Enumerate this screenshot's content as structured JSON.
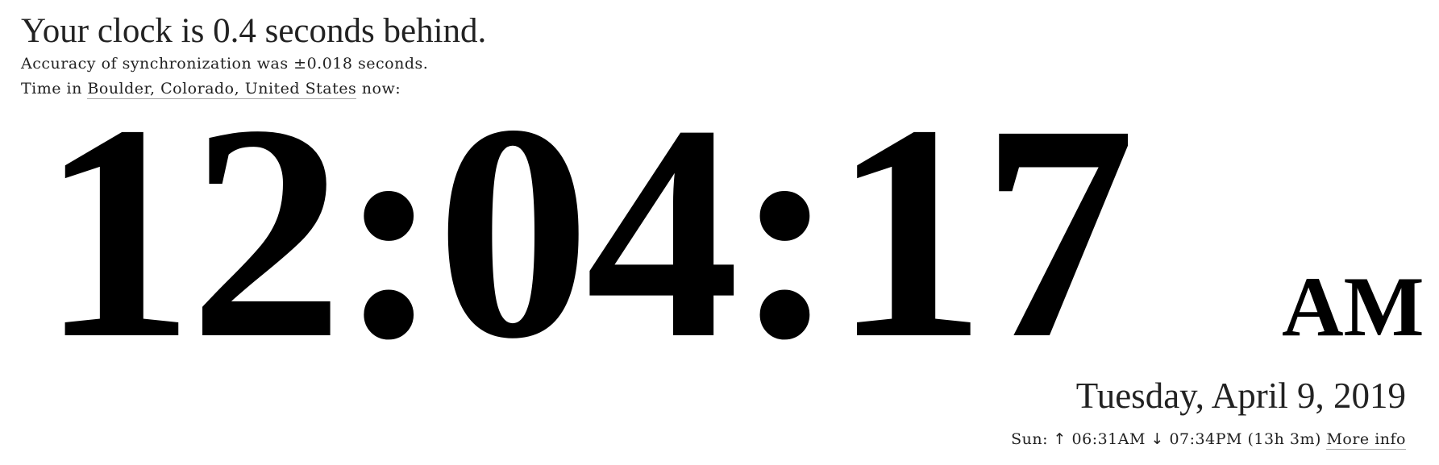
{
  "status": {
    "headline": "Your clock is 0.4 seconds behind.",
    "accuracy": "Accuracy of synchronization was ±0.018 seconds.",
    "location_prefix": "Time in",
    "location_link": "Boulder, Colorado, United States",
    "location_suffix": "now:"
  },
  "clock": {
    "time": "12:04:17",
    "ampm": "AM"
  },
  "date": {
    "text": "Tuesday, April 9, 2019"
  },
  "sun": {
    "label": "Sun:",
    "up_arrow": "↑",
    "sunrise": "06:31AM",
    "down_arrow": "↓",
    "sunset": "07:34PM",
    "daylight": "(13h 3m)",
    "more_info": "More info"
  }
}
